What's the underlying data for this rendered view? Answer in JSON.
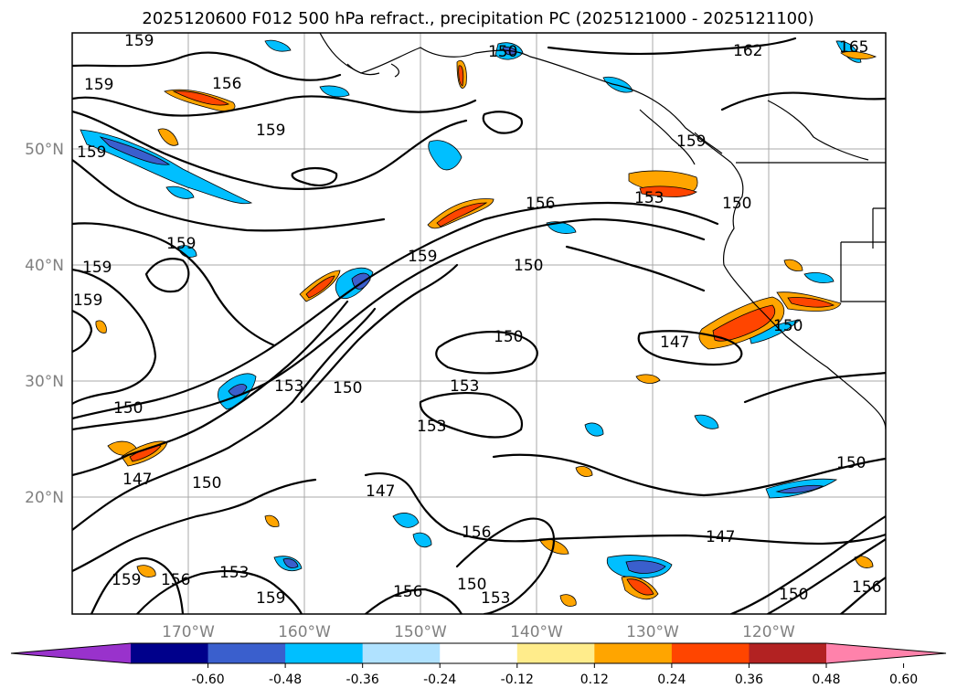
{
  "title": "2025120600 F012 500 hPa refract., precipitation PC (2025121000 - 2025121100)",
  "lon_labels": [
    "170°W",
    "160°W",
    "150°W",
    "140°W",
    "130°W",
    "120°W"
  ],
  "lat_labels": [
    "50°N",
    "40°N",
    "30°N",
    "20°N"
  ],
  "colorbar": {
    "colors": [
      "#9932cc",
      "#00008b",
      "#3a5fcd",
      "#00bfff",
      "#b0e2ff",
      "#ffffff",
      "#ffec8b",
      "#ffa500",
      "#ff4500",
      "#b22222",
      "#ff82ab"
    ],
    "ticks": [
      "-0.60",
      "-0.48",
      "-0.36",
      "-0.24",
      "-0.12",
      "0.12",
      "0.24",
      "0.36",
      "0.48",
      "0.60"
    ]
  },
  "contour_labels": {
    "c1": "159",
    "c2": "156",
    "c3": "159",
    "c4": "162",
    "c5": "165",
    "c6": "159",
    "c7": "159",
    "c8": "159",
    "c9": "156",
    "c10": "153",
    "c11": "159",
    "c12": "159",
    "c13": "150",
    "c14": "159",
    "c15": "150",
    "c16": "147",
    "c17": "150",
    "c18": "153",
    "c19": "150",
    "c20": "153",
    "c21": "153",
    "c22": "150",
    "c23": "147",
    "c24": "150",
    "c25": "147",
    "c26": "150",
    "c27": "147",
    "c28": "156",
    "c29": "156",
    "c30": "153",
    "c31": "159",
    "c32": "159",
    "c33": "156",
    "c34": "153",
    "c35": "150",
    "c36": "150",
    "c37": "156",
    "c38": "150",
    "c39": "159",
    "c40": "150"
  }
}
